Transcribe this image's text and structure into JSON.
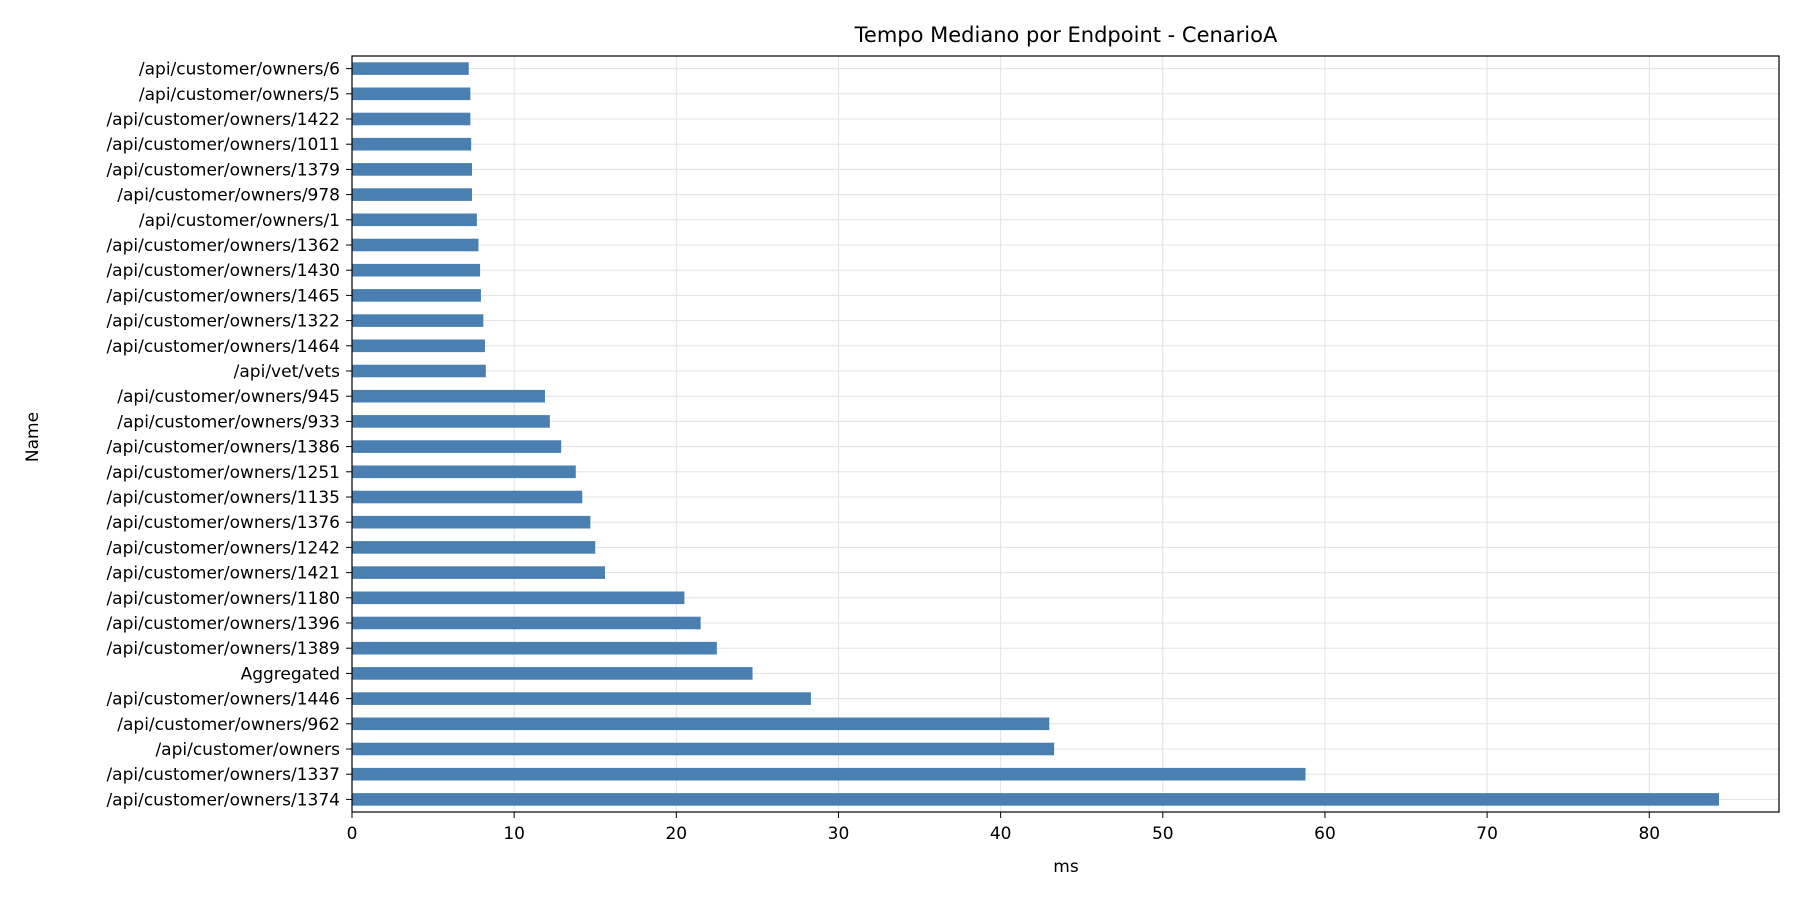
{
  "chart_data": {
    "type": "bar",
    "orientation": "horizontal",
    "title": "Tempo Mediano por Endpoint - CenarioA",
    "xlabel": "ms",
    "ylabel": "Name",
    "xlim": [
      0,
      88
    ],
    "x_ticks": [
      0,
      10,
      20,
      30,
      40,
      50,
      60,
      70,
      80
    ],
    "grid": true,
    "legend": "none",
    "bar_color": "#4a7fb1",
    "categories": [
      "/api/customer/owners/6",
      "/api/customer/owners/5",
      "/api/customer/owners/1422",
      "/api/customer/owners/1011",
      "/api/customer/owners/1379",
      "/api/customer/owners/978",
      "/api/customer/owners/1",
      "/api/customer/owners/1362",
      "/api/customer/owners/1430",
      "/api/customer/owners/1465",
      "/api/customer/owners/1322",
      "/api/customer/owners/1464",
      "/api/vet/vets",
      "/api/customer/owners/945",
      "/api/customer/owners/933",
      "/api/customer/owners/1386",
      "/api/customer/owners/1251",
      "/api/customer/owners/1135",
      "/api/customer/owners/1376",
      "/api/customer/owners/1242",
      "/api/customer/owners/1421",
      "/api/customer/owners/1180",
      "/api/customer/owners/1396",
      "/api/customer/owners/1389",
      "Aggregated",
      "/api/customer/owners/1446",
      "/api/customer/owners/962",
      "/api/customer/owners",
      "/api/customer/owners/1337",
      "/api/customer/owners/1374"
    ],
    "values": [
      7.2,
      7.3,
      7.3,
      7.35,
      7.4,
      7.4,
      7.7,
      7.8,
      7.9,
      7.95,
      8.1,
      8.2,
      8.25,
      11.9,
      12.2,
      12.9,
      13.8,
      14.2,
      14.7,
      15.0,
      15.6,
      20.5,
      21.5,
      22.5,
      24.7,
      28.3,
      43.0,
      43.3,
      58.8,
      84.3
    ]
  }
}
